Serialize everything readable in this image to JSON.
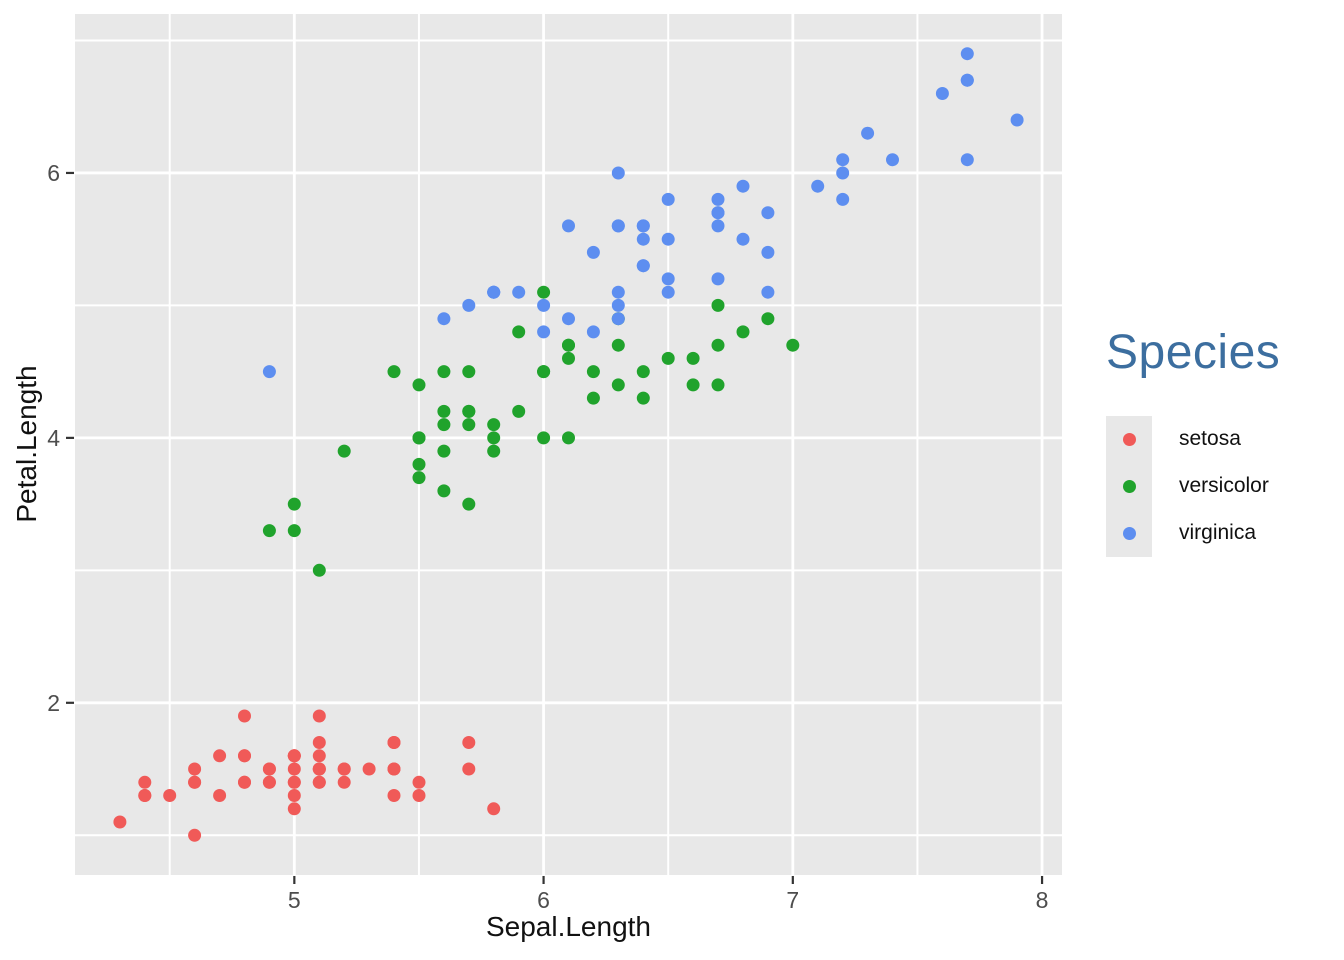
{
  "figure": {
    "background": "#FFFFFF",
    "panel_background": "#E8E8E8",
    "grid_color": "#FFFFFF",
    "axis_tick_color": "#333333",
    "tick_label_color": "#4D4D4D",
    "axis_title_color": "#111111",
    "legend_label_color": "#111111"
  },
  "chart_data": {
    "type": "scatter",
    "title": "",
    "xlabel": "Sepal.Length",
    "ylabel": "Petal.Length",
    "xlim": [
      4.12,
      8.08
    ],
    "ylim": [
      0.7,
      7.2
    ],
    "x_major_ticks": [
      5,
      6,
      7,
      8
    ],
    "x_minor_ticks": [
      4.5,
      5.5,
      6.5,
      7.5
    ],
    "y_major_ticks": [
      2,
      4,
      6
    ],
    "y_minor_ticks": [
      1,
      3,
      5,
      7
    ],
    "grid": "white major+minor gridlines on grey panel",
    "legend": {
      "title": "Species",
      "position": "right",
      "title_color": "#3C6E9F"
    },
    "series": [
      {
        "name": "setosa",
        "color": "#F05A58",
        "points": [
          [
            5.1,
            1.4
          ],
          [
            4.9,
            1.4
          ],
          [
            4.7,
            1.3
          ],
          [
            4.6,
            1.5
          ],
          [
            5.0,
            1.4
          ],
          [
            5.4,
            1.7
          ],
          [
            4.6,
            1.4
          ],
          [
            5.0,
            1.5
          ],
          [
            4.4,
            1.4
          ],
          [
            4.9,
            1.5
          ],
          [
            5.4,
            1.5
          ],
          [
            4.8,
            1.6
          ],
          [
            4.8,
            1.4
          ],
          [
            4.3,
            1.1
          ],
          [
            5.8,
            1.2
          ],
          [
            5.7,
            1.5
          ],
          [
            5.4,
            1.3
          ],
          [
            5.1,
            1.4
          ],
          [
            5.7,
            1.7
          ],
          [
            5.1,
            1.5
          ],
          [
            5.4,
            1.7
          ],
          [
            5.1,
            1.5
          ],
          [
            4.6,
            1.0
          ],
          [
            5.1,
            1.7
          ],
          [
            4.8,
            1.9
          ],
          [
            5.0,
            1.6
          ],
          [
            5.0,
            1.6
          ],
          [
            5.2,
            1.5
          ],
          [
            5.2,
            1.4
          ],
          [
            4.7,
            1.6
          ],
          [
            4.8,
            1.6
          ],
          [
            5.4,
            1.5
          ],
          [
            5.2,
            1.5
          ],
          [
            5.5,
            1.4
          ],
          [
            4.9,
            1.5
          ],
          [
            5.0,
            1.2
          ],
          [
            5.5,
            1.3
          ],
          [
            4.9,
            1.4
          ],
          [
            4.4,
            1.3
          ],
          [
            5.1,
            1.5
          ],
          [
            5.0,
            1.3
          ],
          [
            4.5,
            1.3
          ],
          [
            4.4,
            1.3
          ],
          [
            5.0,
            1.6
          ],
          [
            5.1,
            1.9
          ],
          [
            4.8,
            1.4
          ],
          [
            5.1,
            1.6
          ],
          [
            4.6,
            1.4
          ],
          [
            5.3,
            1.5
          ],
          [
            5.0,
            1.4
          ]
        ]
      },
      {
        "name": "versicolor",
        "color": "#20A32C",
        "points": [
          [
            7.0,
            4.7
          ],
          [
            6.4,
            4.5
          ],
          [
            6.9,
            4.9
          ],
          [
            5.5,
            4.0
          ],
          [
            6.5,
            4.6
          ],
          [
            5.7,
            4.5
          ],
          [
            6.3,
            4.7
          ],
          [
            4.9,
            3.3
          ],
          [
            6.6,
            4.6
          ],
          [
            5.2,
            3.9
          ],
          [
            5.0,
            3.5
          ],
          [
            5.9,
            4.2
          ],
          [
            6.0,
            4.0
          ],
          [
            6.1,
            4.7
          ],
          [
            5.6,
            3.6
          ],
          [
            6.7,
            4.4
          ],
          [
            5.6,
            4.5
          ],
          [
            5.8,
            4.1
          ],
          [
            6.2,
            4.5
          ],
          [
            5.6,
            3.9
          ],
          [
            5.9,
            4.8
          ],
          [
            6.1,
            4.0
          ],
          [
            6.3,
            4.9
          ],
          [
            6.1,
            4.7
          ],
          [
            6.4,
            4.3
          ],
          [
            6.6,
            4.4
          ],
          [
            6.8,
            4.8
          ],
          [
            6.7,
            5.0
          ],
          [
            6.0,
            4.5
          ],
          [
            5.7,
            3.5
          ],
          [
            5.5,
            3.8
          ],
          [
            5.5,
            3.7
          ],
          [
            5.8,
            3.9
          ],
          [
            6.0,
            5.1
          ],
          [
            5.4,
            4.5
          ],
          [
            6.0,
            4.5
          ],
          [
            6.7,
            4.7
          ],
          [
            6.3,
            4.4
          ],
          [
            5.6,
            4.1
          ],
          [
            5.5,
            4.0
          ],
          [
            5.5,
            4.4
          ],
          [
            6.1,
            4.6
          ],
          [
            5.8,
            4.0
          ],
          [
            5.0,
            3.3
          ],
          [
            5.6,
            4.2
          ],
          [
            5.7,
            4.2
          ],
          [
            5.7,
            4.2
          ],
          [
            6.2,
            4.3
          ],
          [
            5.1,
            3.0
          ],
          [
            5.7,
            4.1
          ]
        ]
      },
      {
        "name": "virginica",
        "color": "#5D8EF0",
        "points": [
          [
            6.3,
            6.0
          ],
          [
            5.8,
            5.1
          ],
          [
            7.1,
            5.9
          ],
          [
            6.3,
            5.6
          ],
          [
            6.5,
            5.8
          ],
          [
            7.6,
            6.6
          ],
          [
            4.9,
            4.5
          ],
          [
            7.3,
            6.3
          ],
          [
            6.7,
            5.8
          ],
          [
            7.2,
            6.1
          ],
          [
            6.5,
            5.1
          ],
          [
            6.4,
            5.3
          ],
          [
            6.8,
            5.5
          ],
          [
            5.7,
            5.0
          ],
          [
            5.8,
            5.1
          ],
          [
            6.4,
            5.3
          ],
          [
            6.5,
            5.5
          ],
          [
            7.7,
            6.7
          ],
          [
            7.7,
            6.9
          ],
          [
            6.0,
            5.0
          ],
          [
            6.9,
            5.7
          ],
          [
            5.6,
            4.9
          ],
          [
            7.7,
            6.7
          ],
          [
            6.3,
            4.9
          ],
          [
            6.7,
            5.7
          ],
          [
            7.2,
            6.0
          ],
          [
            6.2,
            4.8
          ],
          [
            6.1,
            4.9
          ],
          [
            6.4,
            5.6
          ],
          [
            7.2,
            5.8
          ],
          [
            7.4,
            6.1
          ],
          [
            7.9,
            6.4
          ],
          [
            6.4,
            5.6
          ],
          [
            6.3,
            5.1
          ],
          [
            6.1,
            5.6
          ],
          [
            7.7,
            6.1
          ],
          [
            6.3,
            5.6
          ],
          [
            6.4,
            5.5
          ],
          [
            6.0,
            4.8
          ],
          [
            6.9,
            5.4
          ],
          [
            6.7,
            5.6
          ],
          [
            6.9,
            5.1
          ],
          [
            5.8,
            5.1
          ],
          [
            6.8,
            5.9
          ],
          [
            6.7,
            5.7
          ],
          [
            6.7,
            5.2
          ],
          [
            6.3,
            5.0
          ],
          [
            6.5,
            5.2
          ],
          [
            6.2,
            5.4
          ],
          [
            5.9,
            5.1
          ]
        ]
      }
    ]
  }
}
